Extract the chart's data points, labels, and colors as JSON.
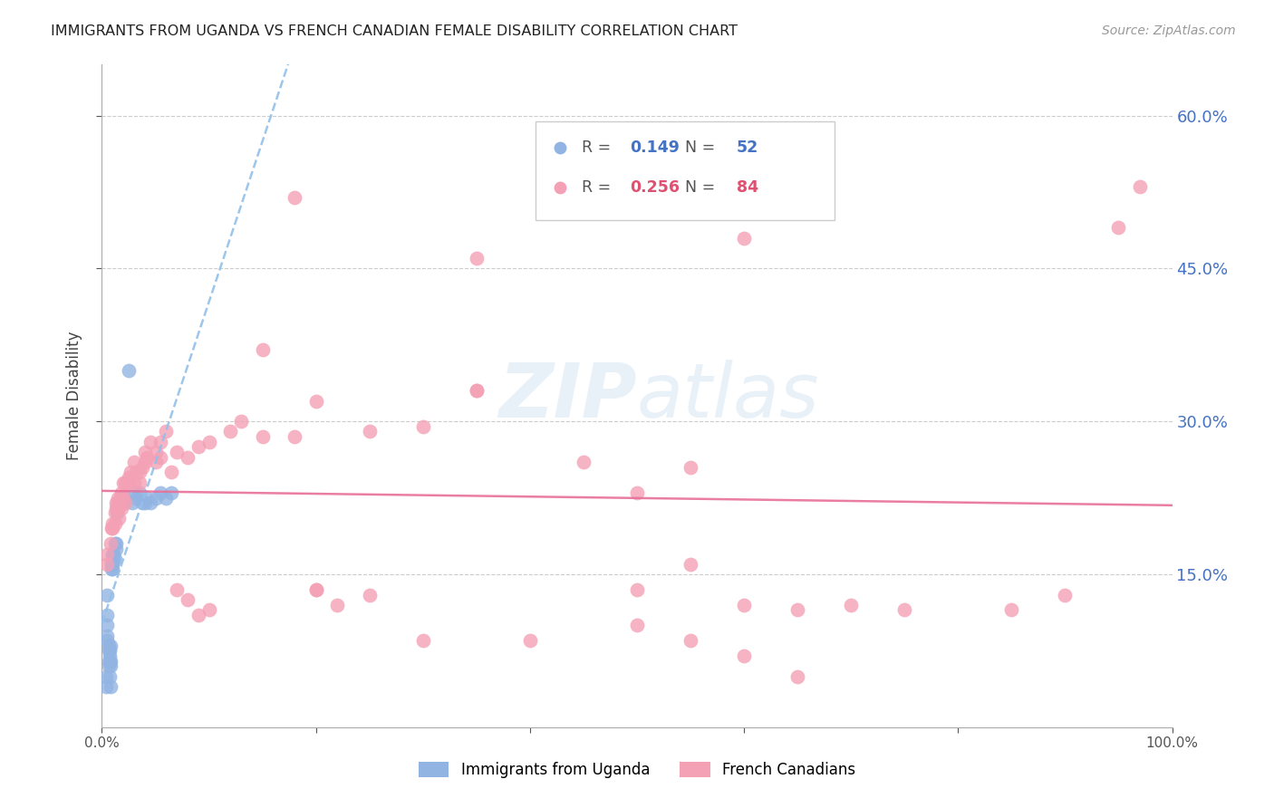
{
  "title": "IMMIGRANTS FROM UGANDA VS FRENCH CANADIAN FEMALE DISABILITY CORRELATION CHART",
  "source": "Source: ZipAtlas.com",
  "ylabel": "Female Disability",
  "xlim": [
    0.0,
    1.0
  ],
  "ylim": [
    0.0,
    0.65
  ],
  "ytick_positions": [
    0.15,
    0.3,
    0.45,
    0.6
  ],
  "ytick_labels": [
    "15.0%",
    "30.0%",
    "45.0%",
    "60.0%"
  ],
  "uganda_color": "#92b4e3",
  "french_color": "#f4a0b5",
  "trendline_uganda_color": "#92c0e8",
  "trendline_french_color": "#e87098",
  "watermark_color": "#dce8f5",
  "legend_R_uganda": "0.149",
  "legend_N_uganda": "52",
  "legend_R_french": "0.256",
  "legend_N_french": "84",
  "value_color_blue": "#4472c4",
  "value_color_pink": "#e05070",
  "uganda_x": [
    0.004,
    0.004,
    0.005,
    0.005,
    0.005,
    0.005,
    0.005,
    0.006,
    0.006,
    0.006,
    0.006,
    0.007,
    0.007,
    0.007,
    0.008,
    0.008,
    0.008,
    0.009,
    0.009,
    0.01,
    0.01,
    0.01,
    0.011,
    0.011,
    0.012,
    0.012,
    0.013,
    0.013,
    0.014,
    0.015,
    0.015,
    0.016,
    0.017,
    0.018,
    0.019,
    0.02,
    0.022,
    0.025,
    0.028,
    0.03,
    0.032,
    0.035,
    0.038,
    0.04,
    0.042,
    0.045,
    0.05,
    0.055,
    0.06,
    0.065,
    0.007,
    0.008
  ],
  "uganda_y": [
    0.05,
    0.04,
    0.13,
    0.11,
    0.1,
    0.09,
    0.085,
    0.08,
    0.075,
    0.065,
    0.06,
    0.075,
    0.07,
    0.065,
    0.08,
    0.065,
    0.06,
    0.16,
    0.155,
    0.17,
    0.16,
    0.155,
    0.165,
    0.17,
    0.18,
    0.165,
    0.18,
    0.175,
    0.21,
    0.22,
    0.215,
    0.22,
    0.225,
    0.22,
    0.225,
    0.22,
    0.225,
    0.35,
    0.22,
    0.23,
    0.225,
    0.23,
    0.22,
    0.22,
    0.225,
    0.22,
    0.225,
    0.23,
    0.225,
    0.23,
    0.05,
    0.04
  ],
  "french_x": [
    0.005,
    0.005,
    0.008,
    0.009,
    0.01,
    0.01,
    0.012,
    0.012,
    0.013,
    0.013,
    0.015,
    0.015,
    0.016,
    0.016,
    0.017,
    0.018,
    0.018,
    0.02,
    0.02,
    0.022,
    0.022,
    0.025,
    0.025,
    0.027,
    0.03,
    0.03,
    0.032,
    0.035,
    0.035,
    0.038,
    0.04,
    0.04,
    0.042,
    0.045,
    0.05,
    0.05,
    0.055,
    0.055,
    0.06,
    0.065,
    0.07,
    0.08,
    0.09,
    0.1,
    0.12,
    0.13,
    0.15,
    0.18,
    0.2,
    0.22,
    0.25,
    0.3,
    0.35,
    0.4,
    0.45,
    0.5,
    0.55,
    0.6,
    0.65,
    0.7,
    0.75,
    0.85,
    0.9,
    0.15,
    0.2,
    0.25,
    0.3,
    0.35,
    0.5,
    0.55,
    0.6,
    0.95,
    0.97,
    0.18,
    0.35,
    0.2,
    0.65,
    0.5,
    0.55,
    0.6,
    0.07,
    0.08,
    0.09,
    0.1
  ],
  "french_y": [
    0.17,
    0.16,
    0.18,
    0.195,
    0.2,
    0.195,
    0.21,
    0.2,
    0.215,
    0.22,
    0.225,
    0.215,
    0.22,
    0.205,
    0.225,
    0.23,
    0.215,
    0.24,
    0.225,
    0.24,
    0.22,
    0.245,
    0.24,
    0.25,
    0.26,
    0.24,
    0.25,
    0.25,
    0.24,
    0.255,
    0.27,
    0.26,
    0.265,
    0.28,
    0.27,
    0.26,
    0.28,
    0.265,
    0.29,
    0.25,
    0.27,
    0.265,
    0.275,
    0.28,
    0.29,
    0.3,
    0.285,
    0.285,
    0.135,
    0.12,
    0.13,
    0.085,
    0.33,
    0.085,
    0.26,
    0.23,
    0.255,
    0.12,
    0.115,
    0.12,
    0.115,
    0.115,
    0.13,
    0.37,
    0.32,
    0.29,
    0.295,
    0.33,
    0.135,
    0.16,
    0.48,
    0.49,
    0.53,
    0.52,
    0.46,
    0.135,
    0.05,
    0.1,
    0.085,
    0.07,
    0.135,
    0.125,
    0.11,
    0.115
  ]
}
